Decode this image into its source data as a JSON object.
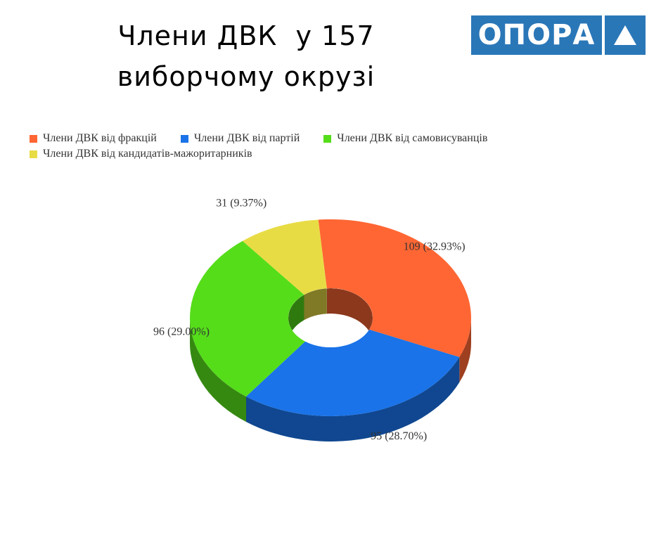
{
  "title_line1": "Члени ДВК  у 157",
  "title_line2": "виборчому окрузі",
  "logo": {
    "text": "ОПОРА",
    "color": "#2a77b8"
  },
  "chart_data": {
    "type": "pie",
    "variant": "3d-donut",
    "legend_position": "top-left",
    "series": [
      {
        "name": "Члени ДВК від фракцій",
        "value": 109,
        "label": "109 (32.93%)",
        "color": "#ff6633"
      },
      {
        "name": "Члени ДВК від партій",
        "value": 95,
        "label": "95 (28.70%)",
        "color": "#1a73e8"
      },
      {
        "name": "Члени ДВК від самовисуванців",
        "value": 96,
        "label": "96 (29.00%)",
        "color": "#55dd1a"
      },
      {
        "name": "Члени ДВК від кандидатів-мажоритарників",
        "value": 31,
        "label": "31 (9.37%)",
        "color": "#e8dc45"
      }
    ]
  }
}
